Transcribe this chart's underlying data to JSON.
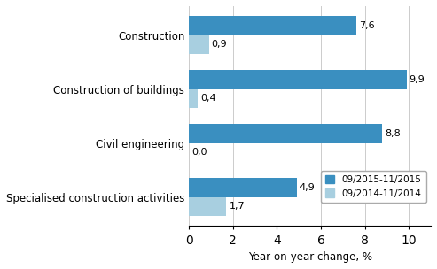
{
  "categories": [
    "Construction",
    "Construction of buildings",
    "Civil engineering",
    "Specialised construction activities"
  ],
  "series_2015": [
    7.6,
    9.9,
    8.8,
    4.9
  ],
  "series_2014": [
    0.9,
    0.4,
    0.0,
    1.7
  ],
  "labels_2015": [
    "7,6",
    "9,9",
    "8,8",
    "4,9"
  ],
  "labels_2014": [
    "0,9",
    "0,4",
    "0,0",
    "1,7"
  ],
  "color_2015": "#3a8fc0",
  "color_2014": "#a8cfe0",
  "legend_2015": "09/2015-11/2015",
  "legend_2014": "09/2014-11/2014",
  "xlabel": "Year-on-year change, %",
  "xlim": [
    0,
    11
  ],
  "xticks": [
    0,
    2,
    4,
    6,
    8,
    10
  ],
  "bar_height": 0.35,
  "figsize": [
    4.93,
    3.04
  ],
  "dpi": 100
}
